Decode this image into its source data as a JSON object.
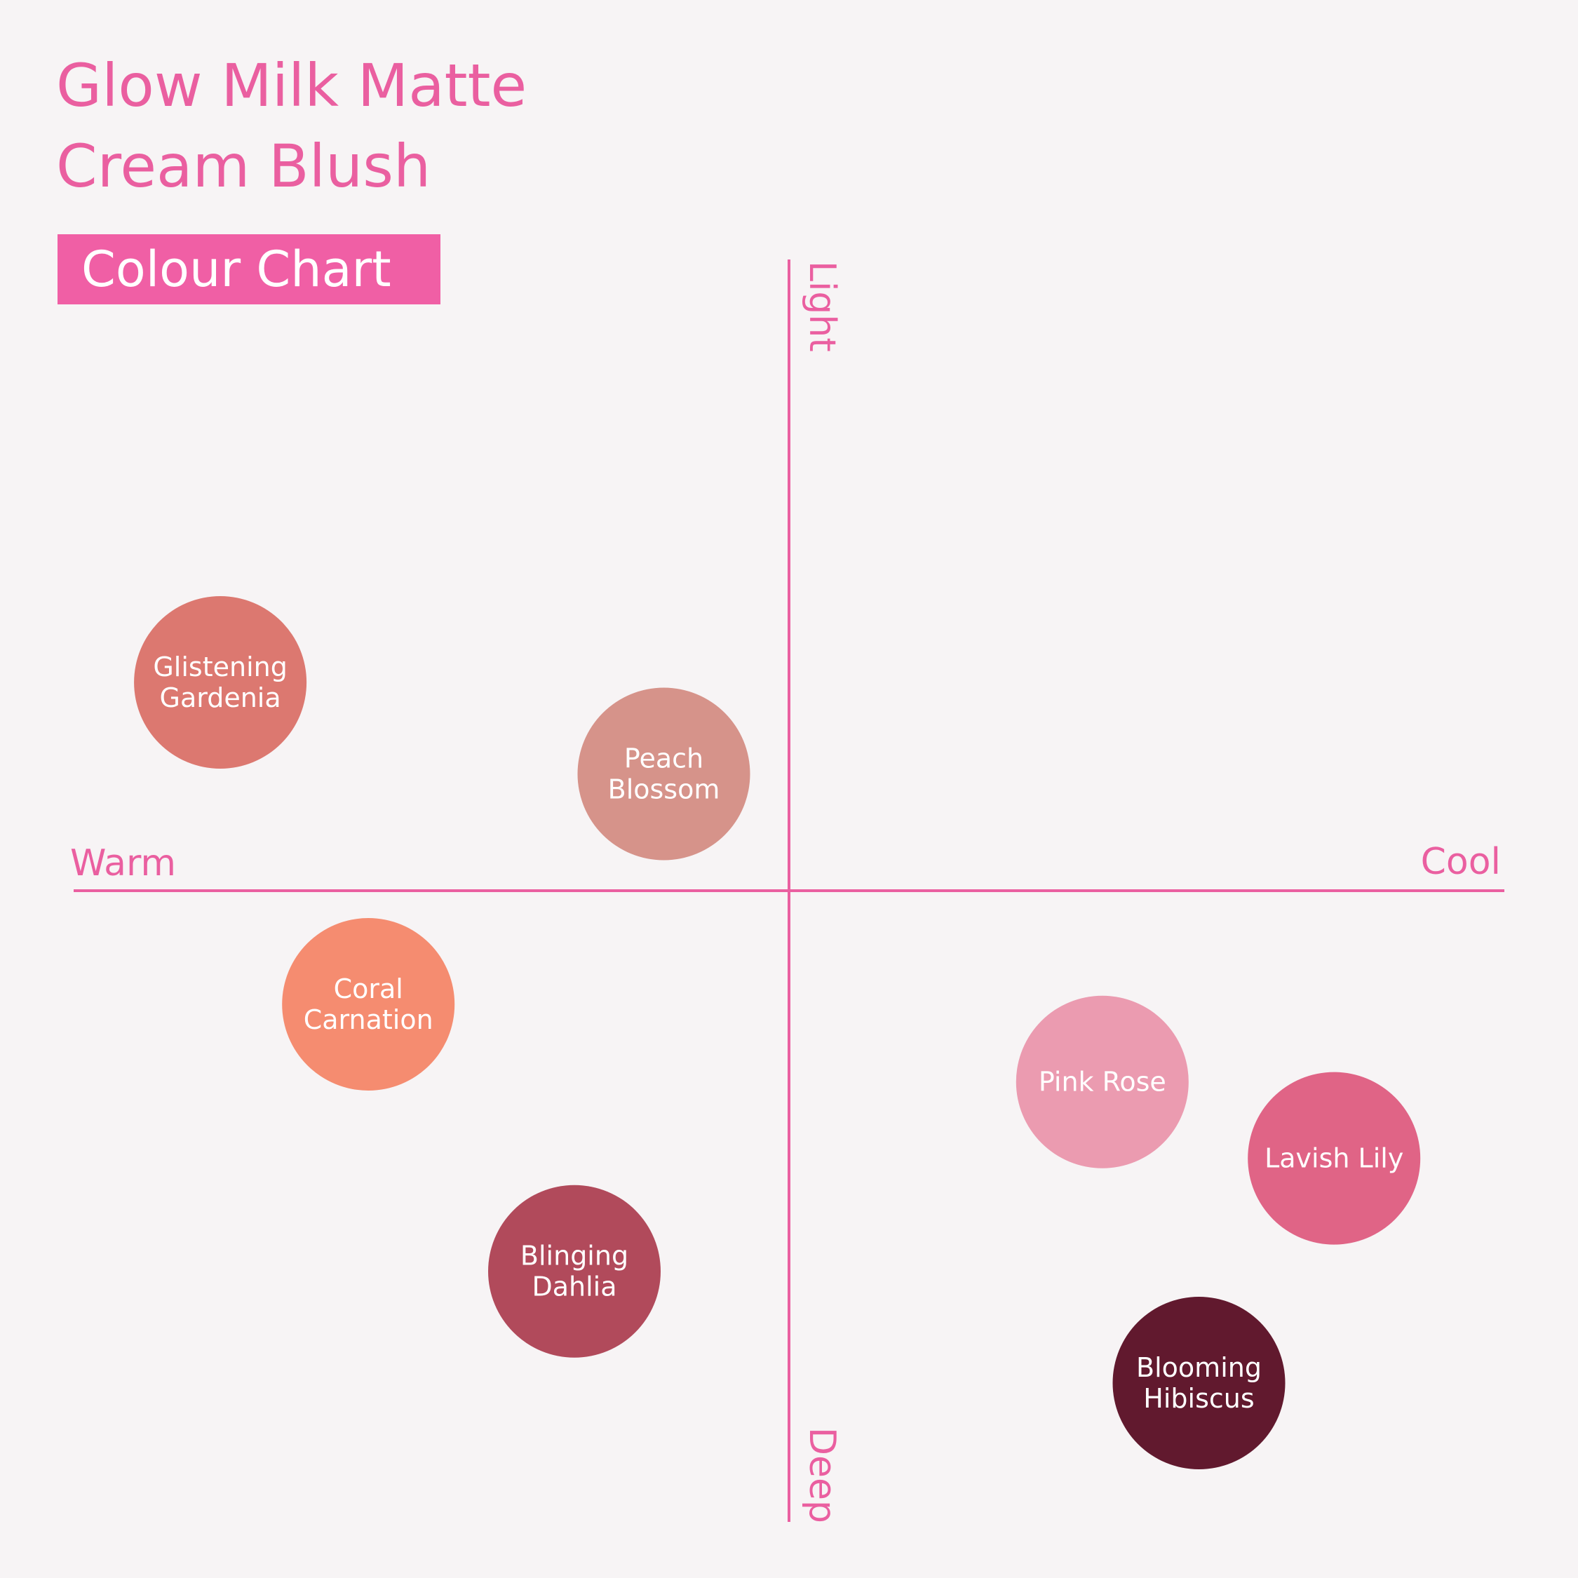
{
  "title": {
    "line1": "Glow Milk Matte",
    "line2": "Cream Blush"
  },
  "subtitle": "Colour Chart",
  "colors": {
    "background": "#f7f4f5",
    "accent": "#ea5fa0",
    "subtitle_bg": "#f05fa5",
    "label_text": "#ffffff"
  },
  "chart_data": {
    "type": "scatter",
    "x_axis": {
      "range": [
        -1,
        1
      ],
      "negative_label": "Warm",
      "positive_label": "Cool"
    },
    "y_axis": {
      "range": [
        -1,
        1
      ],
      "positive_label": "Light",
      "negative_label": "Deep"
    },
    "grid": false,
    "points": [
      {
        "name": "Glistening Gardenia",
        "lines": [
          "Glistening",
          "Gardenia"
        ],
        "x": -0.795,
        "y": 0.33,
        "color": "#dc7870"
      },
      {
        "name": "Peach Blossom",
        "lines": [
          "Peach",
          "Blossom"
        ],
        "x": -0.175,
        "y": 0.185,
        "color": "#d6938a"
      },
      {
        "name": "Coral Carnation",
        "lines": [
          "Coral",
          "Carnation"
        ],
        "x": -0.588,
        "y": -0.18,
        "color": "#f58c70"
      },
      {
        "name": "Blinging Dahlia",
        "lines": [
          "Blinging",
          "Dahlia"
        ],
        "x": -0.3,
        "y": -0.603,
        "color": "#b14a5b"
      },
      {
        "name": "Pink Rose",
        "lines": [
          "Pink Rose"
        ],
        "x": 0.438,
        "y": -0.303,
        "color": "#eb9bb0"
      },
      {
        "name": "Lavish Lily",
        "lines": [
          "Lavish Lily"
        ],
        "x": 0.762,
        "y": -0.424,
        "color": "#e06486"
      },
      {
        "name": "Blooming Hibiscus",
        "lines": [
          "Blooming",
          "Hibiscus"
        ],
        "x": 0.573,
        "y": -0.78,
        "color": "#61192e"
      }
    ]
  }
}
